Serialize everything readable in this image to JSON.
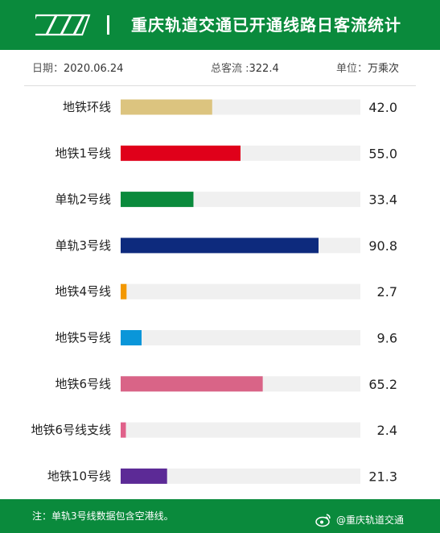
{
  "header": {
    "title": "重庆轨道交通已开通线路日客流统计"
  },
  "info": {
    "date_label": "日期：",
    "date_value": "2020.06.24",
    "total_label": "总客流 :",
    "total_value": "322.4",
    "unit_label": "单位：",
    "unit_value": "万乘次"
  },
  "chart_data": {
    "type": "bar",
    "orientation": "horizontal",
    "categories": [
      "地铁环线",
      "地铁1号线",
      "单轨2号线",
      "单轨3号线",
      "地铁4号线",
      "地铁5号线",
      "地铁6号线",
      "地铁6号线支线",
      "地铁10号线"
    ],
    "values": [
      42.0,
      55.0,
      33.4,
      90.8,
      2.7,
      9.6,
      65.2,
      2.4,
      21.3
    ],
    "value_labels": [
      "42.0",
      "55.0",
      "33.4",
      "90.8",
      "2.7",
      "9.6",
      "65.2",
      "2.4",
      "21.3"
    ],
    "colors": [
      "#dcc47f",
      "#e0001a",
      "#0a8a3c",
      "#0d2a7d",
      "#f39800",
      "#0a96d9",
      "#d96487",
      "#e0618a",
      "#5c2a96"
    ],
    "track_color": "#f0f0f0",
    "xlim": [
      0,
      110
    ],
    "grid": false,
    "legend": "none"
  },
  "footer": {
    "note": "注：单轨3号线数据包含空港线。",
    "weibo_text": "@重庆轨道交通"
  },
  "colors": {
    "brand_green": "#0a8a3c"
  },
  "icons": {
    "logo": "crt-logo-icon",
    "weibo": "weibo-icon"
  }
}
